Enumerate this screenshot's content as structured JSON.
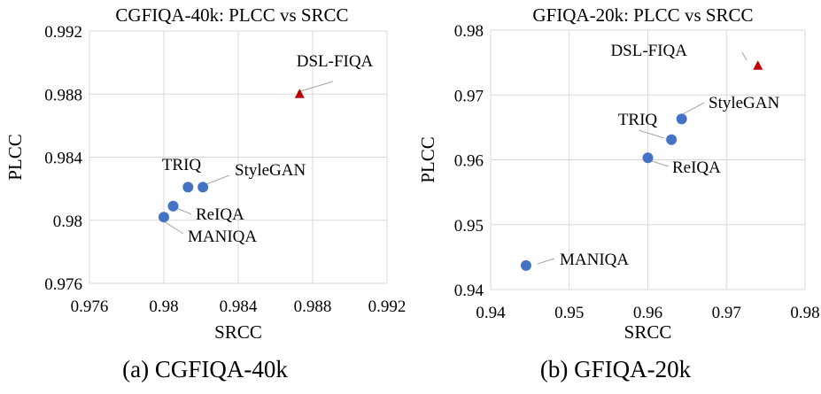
{
  "chart_data": [
    {
      "type": "scatter",
      "title": "CGFIQA-40k: PLCC vs SRCC",
      "xlabel": "SRCC",
      "ylabel": "PLCC",
      "xlim": [
        0.976,
        0.992
      ],
      "ylim": [
        0.976,
        0.992
      ],
      "xticks": [
        "0.976",
        "0.98",
        "0.984",
        "0.988",
        "0.992"
      ],
      "yticks": [
        "0.976",
        "0.98",
        "0.984",
        "0.988",
        "0.992"
      ],
      "grid": true,
      "points": [
        {
          "label": "DSL-FIQA",
          "x": 0.9873,
          "y": 0.988,
          "marker": "triangle",
          "color": "#c00000"
        },
        {
          "label": "StyleGAN",
          "x": 0.9821,
          "y": 0.9821,
          "marker": "circle",
          "color": "#4472c4"
        },
        {
          "label": "TRIQ",
          "x": 0.9813,
          "y": 0.9821,
          "marker": "circle",
          "color": "#4472c4"
        },
        {
          "label": "ReIQA",
          "x": 0.9805,
          "y": 0.9809,
          "marker": "circle",
          "color": "#4472c4"
        },
        {
          "label": "MANIQA",
          "x": 0.98,
          "y": 0.9802,
          "marker": "circle",
          "color": "#4472c4"
        }
      ],
      "caption": "(a) CGFIQA-40k"
    },
    {
      "type": "scatter",
      "title": "GFIQA-20k: PLCC vs SRCC",
      "xlabel": "SRCC",
      "ylabel": "PLCC",
      "xlim": [
        0.94,
        0.98
      ],
      "ylim": [
        0.94,
        0.98
      ],
      "xticks": [
        "0.94",
        "0.95",
        "0.96",
        "0.97",
        "0.98"
      ],
      "yticks": [
        "0.94",
        "0.95",
        "0.96",
        "0.97",
        "0.98"
      ],
      "grid": true,
      "points": [
        {
          "label": "DSL-FIQA",
          "x": 0.974,
          "y": 0.9745,
          "marker": "triangle",
          "color": "#c00000"
        },
        {
          "label": "StyleGAN",
          "x": 0.9643,
          "y": 0.9663,
          "marker": "circle",
          "color": "#4472c4"
        },
        {
          "label": "TRIQ",
          "x": 0.963,
          "y": 0.9631,
          "marker": "circle",
          "color": "#4472c4"
        },
        {
          "label": "ReIQA",
          "x": 0.96,
          "y": 0.9603,
          "marker": "circle",
          "color": "#4472c4"
        },
        {
          "label": "MANIQA",
          "x": 0.9445,
          "y": 0.9437,
          "marker": "circle",
          "color": "#4472c4"
        }
      ],
      "caption": "(b) GFIQA-20k"
    }
  ]
}
